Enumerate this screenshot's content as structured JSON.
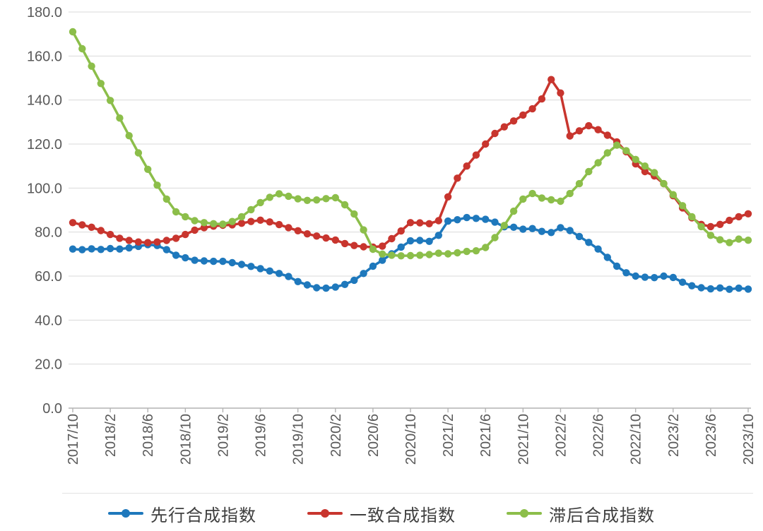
{
  "chart_data": {
    "type": "line",
    "title": "",
    "xlabel": "",
    "ylabel": "",
    "ylim": [
      0,
      180
    ],
    "y_tick_step": 20,
    "grid": true,
    "legend_position": "bottom",
    "y_tick_labels": [
      "0.0",
      "20.0",
      "40.0",
      "60.0",
      "80.0",
      "100.0",
      "120.0",
      "140.0",
      "160.0",
      "180.0"
    ],
    "x_tick_every": 4,
    "x_tick_labels": [
      "2017/10",
      "2018/2",
      "2018/6",
      "2018/10",
      "2019/2",
      "2019/6",
      "2019/10",
      "2020/2",
      "2020/6",
      "2020/10",
      "2021/2",
      "2021/6",
      "2021/10",
      "2022/2",
      "2022/6",
      "2022/10",
      "2023/2",
      "2023/6",
      "2023/10"
    ],
    "months": [
      "2017/10",
      "2017/11",
      "2017/12",
      "2018/1",
      "2018/2",
      "2018/3",
      "2018/4",
      "2018/5",
      "2018/6",
      "2018/7",
      "2018/8",
      "2018/9",
      "2018/10",
      "2018/11",
      "2018/12",
      "2019/1",
      "2019/2",
      "2019/3",
      "2019/4",
      "2019/5",
      "2019/6",
      "2019/7",
      "2019/8",
      "2019/9",
      "2019/10",
      "2019/11",
      "2019/12",
      "2020/1",
      "2020/2",
      "2020/3",
      "2020/4",
      "2020/5",
      "2020/6",
      "2020/7",
      "2020/8",
      "2020/9",
      "2020/10",
      "2020/11",
      "2020/12",
      "2021/1",
      "2021/2",
      "2021/3",
      "2021/4",
      "2021/5",
      "2021/6",
      "2021/7",
      "2021/8",
      "2021/9",
      "2021/10",
      "2021/11",
      "2021/12",
      "2022/1",
      "2022/2",
      "2022/3",
      "2022/4",
      "2022/5",
      "2022/6",
      "2022/7",
      "2022/8",
      "2022/9",
      "2022/10",
      "2022/11",
      "2022/12",
      "2023/1",
      "2023/2",
      "2023/3",
      "2023/4",
      "2023/5",
      "2023/6",
      "2023/7",
      "2023/8",
      "2023/9",
      "2023/10"
    ],
    "series": [
      {
        "name": "先行合成指数",
        "color": "#1e78bc",
        "values": [
          72.3,
          72.0,
          72.4,
          72.1,
          72.5,
          72.3,
          72.8,
          73.5,
          74.3,
          73.9,
          72.0,
          69.5,
          68.3,
          67.2,
          66.9,
          66.7,
          66.7,
          66.1,
          65.3,
          64.4,
          63.4,
          62.3,
          61.2,
          59.8,
          57.5,
          56.0,
          54.7,
          54.5,
          55.0,
          56.2,
          58.1,
          61.2,
          64.5,
          67.2,
          70.1,
          73.2,
          76.0,
          76.2,
          75.8,
          78.5,
          85.0,
          85.6,
          86.6,
          86.2,
          85.8,
          84.5,
          82.4,
          82.2,
          81.3,
          81.6,
          80.3,
          79.8,
          82.0,
          80.7,
          78.0,
          75.3,
          72.3,
          68.5,
          64.5,
          61.5,
          60.0,
          59.5,
          59.3,
          60.0,
          59.4,
          57.2,
          55.6,
          54.7,
          54.2,
          54.6,
          54.0,
          54.5,
          54.1
        ]
      },
      {
        "name": "一致合成指数",
        "color": "#c8352e",
        "values": [
          84.3,
          83.3,
          82.2,
          80.7,
          78.9,
          77.2,
          76.2,
          75.5,
          75.2,
          75.5,
          76.2,
          77.2,
          78.9,
          80.9,
          82.0,
          82.7,
          83.1,
          83.3,
          84.0,
          84.8,
          85.4,
          84.6,
          83.4,
          82.0,
          80.6,
          79.2,
          78.2,
          77.3,
          76.4,
          74.8,
          73.9,
          73.3,
          73.2,
          73.6,
          77.0,
          80.5,
          84.3,
          84.2,
          83.8,
          85.2,
          96.0,
          104.5,
          110.0,
          115.0,
          120.0,
          124.8,
          127.8,
          130.5,
          133.2,
          136.0,
          140.5,
          149.3,
          143.2,
          123.7,
          126.0,
          128.3,
          126.5,
          124.0,
          121.0,
          116.5,
          111.0,
          107.5,
          105.5,
          102.0,
          96.5,
          91.0,
          86.5,
          83.5,
          82.5,
          83.5,
          85.3,
          87.0,
          88.3
        ]
      },
      {
        "name": "滞后合成指数",
        "color": "#8cbe4a",
        "values": [
          171.0,
          163.3,
          155.4,
          147.5,
          139.8,
          131.8,
          123.8,
          116.0,
          108.5,
          101.3,
          95.0,
          89.2,
          87.0,
          85.2,
          84.3,
          83.8,
          83.6,
          84.8,
          87.0,
          90.2,
          93.4,
          95.8,
          97.4,
          96.3,
          95.1,
          94.4,
          94.6,
          95.2,
          95.6,
          92.4,
          88.2,
          81.0,
          72.2,
          70.0,
          69.5,
          69.2,
          69.3,
          69.5,
          69.8,
          70.4,
          70.1,
          70.6,
          71.2,
          71.5,
          73.0,
          77.5,
          83.0,
          89.5,
          95.0,
          97.5,
          95.5,
          94.7,
          94.0,
          97.5,
          102.0,
          107.5,
          111.5,
          116.0,
          119.5,
          117.0,
          113.0,
          110.0,
          107.0,
          102.0,
          97.0,
          92.0,
          87.0,
          82.5,
          78.5,
          76.5,
          75.2,
          76.8,
          76.3
        ]
      }
    ],
    "colors": {
      "gridline": "#d9d9d9",
      "axis": "#b3b3b3",
      "tick_label": "#595959",
      "legend_text": "#3f3f3f",
      "background": "#ffffff"
    }
  }
}
